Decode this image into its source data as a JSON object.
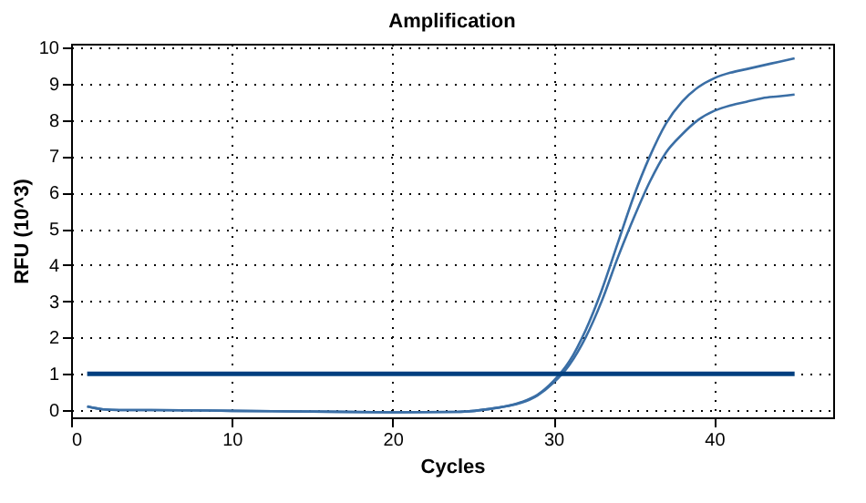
{
  "chart_data": {
    "type": "line",
    "title": "Amplification",
    "xlabel": "Cycles",
    "ylabel": "RFU (10^3)",
    "x": [
      1,
      2,
      3,
      5,
      10,
      15,
      20,
      24,
      26,
      27,
      28,
      29,
      30,
      31,
      32,
      33,
      34,
      35,
      36,
      37,
      38,
      39,
      40,
      41,
      42,
      43,
      44,
      45
    ],
    "series": [
      {
        "color": "#3a6ea5",
        "values": [
          0.1,
          0.02,
          0,
          0,
          -0.02,
          -0.04,
          -0.06,
          -0.05,
          0.03,
          0.1,
          0.22,
          0.42,
          0.8,
          1.35,
          2.2,
          3.3,
          4.6,
          5.9,
          7.0,
          7.9,
          8.5,
          8.9,
          9.15,
          9.3,
          9.4,
          9.5,
          9.6,
          9.7
        ]
      },
      {
        "color": "#3a6ea5",
        "values": [
          0.1,
          0.02,
          0,
          0,
          -0.02,
          -0.04,
          -0.06,
          -0.05,
          0.03,
          0.1,
          0.2,
          0.4,
          0.75,
          1.25,
          2.0,
          3.0,
          4.2,
          5.3,
          6.3,
          7.1,
          7.6,
          8.0,
          8.25,
          8.4,
          8.5,
          8.6,
          8.65,
          8.7
        ]
      }
    ],
    "ref_lines": [
      {
        "axis": "y",
        "value": 1,
        "color": "#003f7f"
      }
    ],
    "xlim": [
      0,
      47.4
    ],
    "xticks": [
      0,
      10,
      20,
      30,
      40
    ],
    "ylim": [
      -0.2,
      10.1
    ],
    "yticks": [
      0,
      1,
      2,
      3,
      4,
      5,
      6,
      7,
      8,
      9,
      10
    ],
    "grid": true,
    "legend": false,
    "marker": "none",
    "line_style": "solid"
  }
}
